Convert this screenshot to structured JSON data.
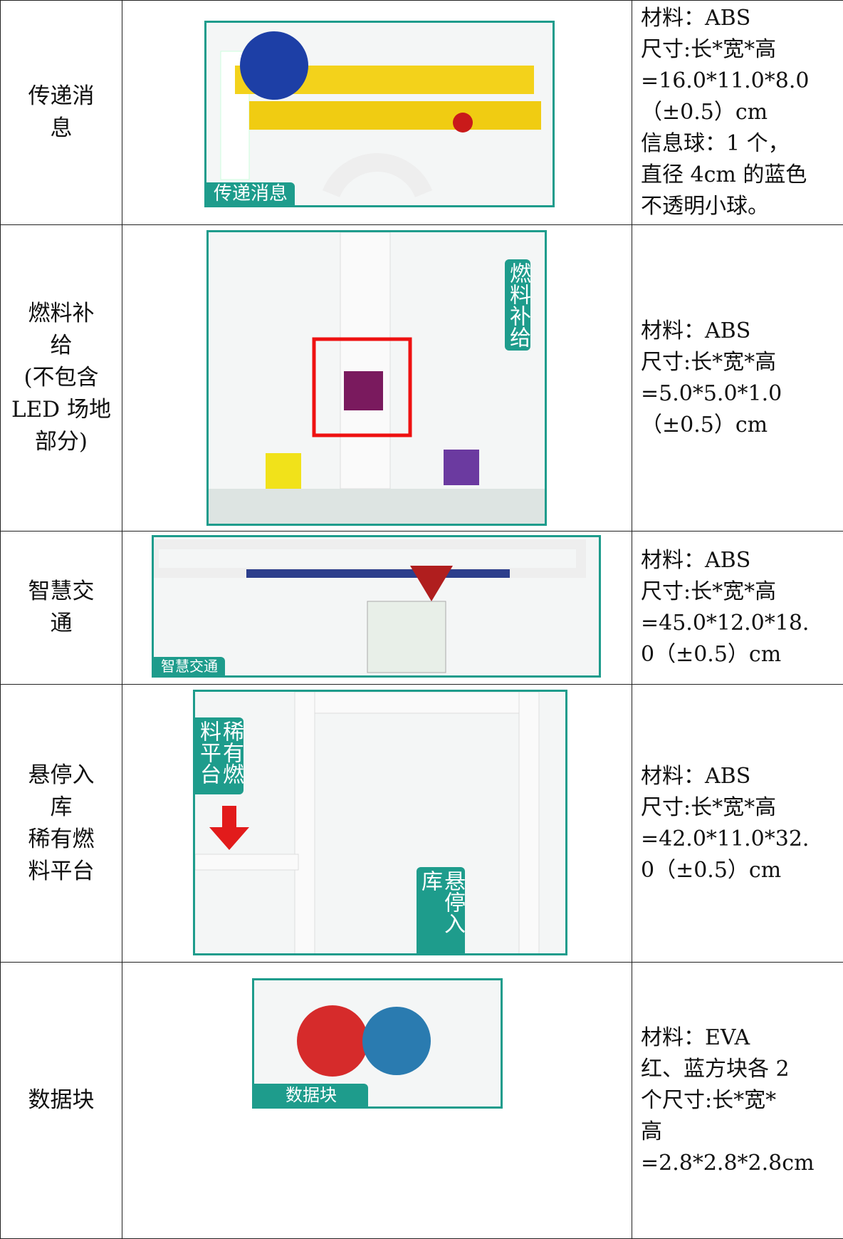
{
  "rows": [
    {
      "name": [
        "传递消",
        "息"
      ],
      "captions": [
        "传递消息"
      ],
      "spec": [
        "材料：ABS",
        "尺寸:长*宽*高",
        "=16.0*11.0*8.0",
        "（±0.5）cm",
        "信息球：1 个，",
        "直径 4cm 的蓝色",
        "不透明小球。"
      ]
    },
    {
      "name": [
        "燃料补",
        "给",
        "(不包含",
        "LED 场地",
        "部分)"
      ],
      "captions": [
        "燃料补给"
      ],
      "spec": [
        "材料：ABS",
        "尺寸:长*宽*高",
        "=5.0*5.0*1.0",
        "（±0.5）cm"
      ]
    },
    {
      "name": [
        "智慧交",
        "通"
      ],
      "captions": [
        "智慧交通"
      ],
      "spec": [
        "材料：ABS",
        "尺寸:长*宽*高",
        "=45.0*12.0*18.",
        "0（±0.5）cm"
      ]
    },
    {
      "name": [
        "悬停入",
        "库",
        "稀有燃",
        "料平台"
      ],
      "captions": [
        "稀有燃料平台",
        "悬停入库"
      ],
      "spec": [
        "材料：ABS",
        "尺寸:长*宽*高",
        "=42.0*11.0*32.",
        "0（±0.5）cm"
      ]
    },
    {
      "name": [
        "数据块"
      ],
      "captions": [
        "数据块"
      ],
      "spec": [
        "材料：EVA",
        "红、蓝方块各 2",
        "个尺寸:长*宽*",
        "高",
        "=2.8*2.8*2.8cm"
      ]
    }
  ]
}
